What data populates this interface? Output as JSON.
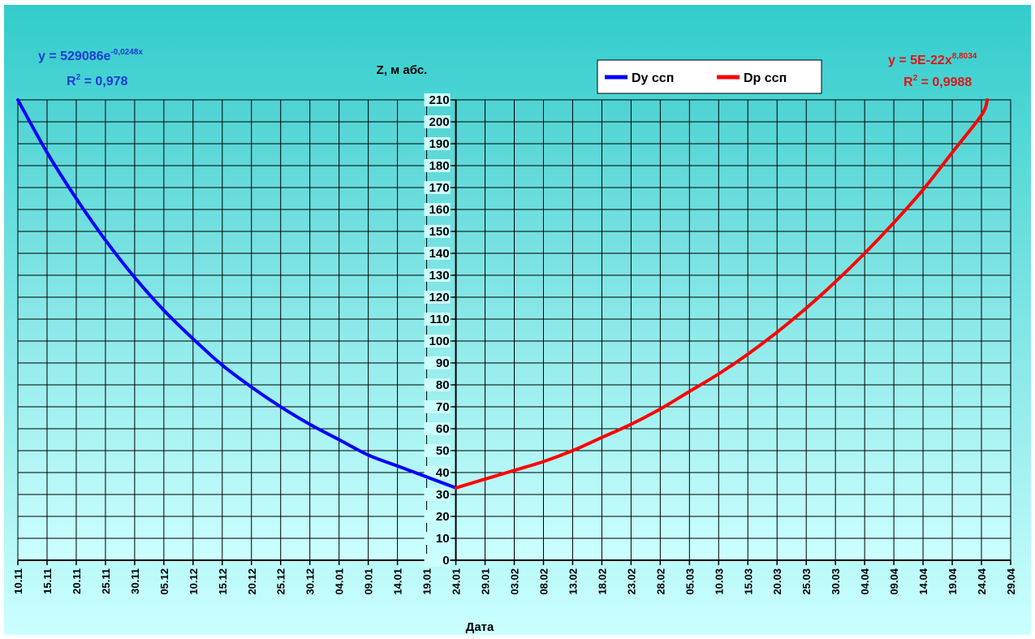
{
  "chart_data": {
    "type": "line",
    "title": "",
    "ylabel": "Z, м абс.",
    "xlabel": "Дата",
    "ylim": [
      0,
      210
    ],
    "yticks": [
      0,
      10,
      20,
      30,
      40,
      50,
      60,
      70,
      80,
      90,
      100,
      110,
      120,
      130,
      140,
      150,
      160,
      170,
      180,
      190,
      200,
      210
    ],
    "xticks": [
      "10.11",
      "15.11",
      "20.11",
      "25.11",
      "30.11",
      "05.12",
      "10.12",
      "15.12",
      "20.12",
      "25.12",
      "30.12",
      "04.01",
      "09.01",
      "14.01",
      "19.01",
      "24.01",
      "29.01",
      "03.02",
      "08.02",
      "13.02",
      "18.02",
      "23.02",
      "28.02",
      "05.03",
      "10.03",
      "15.03",
      "20.03",
      "25.03",
      "30.03",
      "04.04",
      "09.04",
      "14.04",
      "19.04",
      "24.04",
      "29.04"
    ],
    "grid": true,
    "legend_position": "top-center-right",
    "series": [
      {
        "name": "Dy ссп",
        "color": "#0000ff",
        "x": [
          "10.11",
          "15.11",
          "20.11",
          "25.11",
          "30.11",
          "05.12",
          "10.12",
          "15.12",
          "20.12",
          "25.12",
          "30.12",
          "04.01",
          "09.01",
          "14.01",
          "19.01",
          "24.01"
        ],
        "values": [
          210,
          186,
          165,
          146,
          129,
          114,
          101,
          89,
          79,
          70,
          62,
          55,
          48,
          43,
          38,
          33
        ]
      },
      {
        "name": "Dp ссп",
        "color": "#ff0000",
        "x": [
          "24.01",
          "29.01",
          "03.02",
          "08.02",
          "13.02",
          "18.02",
          "23.02",
          "28.02",
          "05.03",
          "10.03",
          "15.03",
          "20.03",
          "25.03",
          "30.03",
          "04.04",
          "09.04",
          "14.04",
          "19.04",
          "24.04",
          "25.04"
        ],
        "values": [
          33,
          37,
          41,
          45,
          50,
          56,
          62,
          69,
          77,
          85,
          94,
          104,
          115,
          127,
          140,
          154,
          169,
          186,
          203,
          210
        ]
      }
    ],
    "annotations": [
      {
        "series": "Dy ссп",
        "equation_base": "y = 529086e",
        "equation_sup": "-0,0248x",
        "r2_base": "R",
        "r2_sup": "2",
        "r2_value": " = 0,978",
        "color": "#1f3bd6"
      },
      {
        "series": "Dp ссп",
        "equation_base": "y = 5E-22x",
        "equation_sup": "8,8034",
        "r2_base": "R",
        "r2_sup": "2",
        "r2_value": " = 0,9988",
        "color": "#e01515"
      }
    ],
    "colors": {
      "bg_top": "#33cccc",
      "bg_bottom": "#ccffff",
      "plot_bg_top": "#4fd3d3",
      "plot_bg_bottom": "#ccffff",
      "label_bg": "#ccffff",
      "legend_bg": "#ffffff"
    }
  }
}
